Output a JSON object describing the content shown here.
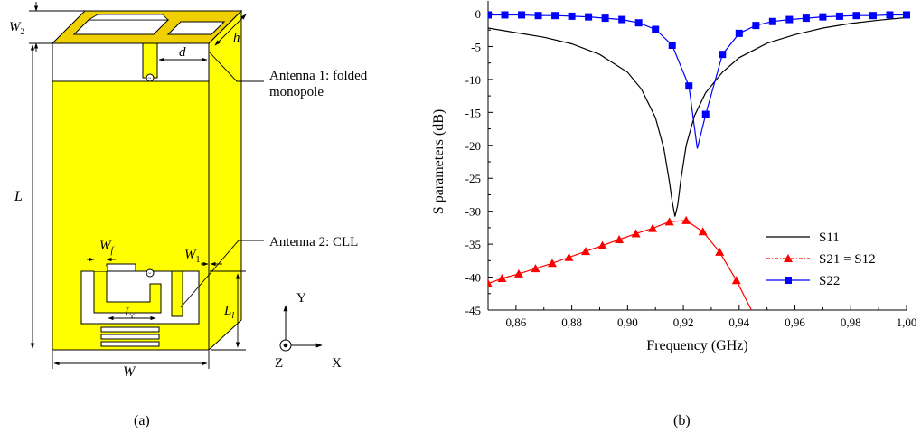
{
  "panel_a": {
    "caption": "(a)",
    "labels": {
      "W2_sym": "W",
      "W2_sub": "2",
      "h": "h",
      "d": "d",
      "L": "L",
      "Wf_sym": "W",
      "Wf_sub": "f",
      "W1_sym": "W",
      "W1_sub": "1",
      "Lc_sym": "L",
      "Lc_sub": "c",
      "L1_sym": "L",
      "L1_sub": "l",
      "W": "W"
    },
    "annotations": {
      "antenna1_line1": "Antenna 1: folded",
      "antenna1_line2": "monopole",
      "antenna2": "Antenna 2: CLL"
    },
    "axes": {
      "y": "Y",
      "x": "X",
      "z": "Z"
    },
    "colors": {
      "copper": "#ffff00",
      "copper_top": "#f0d000",
      "outline": "#000000"
    }
  },
  "panel_b": {
    "caption": "(b)"
  },
  "chart_data": {
    "type": "line",
    "xlabel": "Frequency (GHz)",
    "ylabel": "S parameters (dB)",
    "xlim": [
      0.85,
      1.0
    ],
    "ylim": [
      -45,
      0
    ],
    "xticks": [
      "0,86",
      "0,88",
      "0,90",
      "0,92",
      "0,94",
      "0,96",
      "0,98",
      "1,00"
    ],
    "xtick_values": [
      0.86,
      0.88,
      0.9,
      0.92,
      0.94,
      0.96,
      0.98,
      1.0
    ],
    "yticks": [
      "0",
      "-5",
      "-10",
      "-15",
      "-20",
      "-25",
      "-30",
      "-35",
      "-40",
      "-45"
    ],
    "ytick_values": [
      0,
      -5,
      -10,
      -15,
      -20,
      -25,
      -30,
      -35,
      -40,
      -45
    ],
    "grid": false,
    "legend_position": "bottom-right",
    "series": [
      {
        "name": "S11",
        "color": "#000000",
        "marker": "none",
        "x": [
          0.85,
          0.86,
          0.87,
          0.88,
          0.89,
          0.9,
          0.905,
          0.91,
          0.913,
          0.915,
          0.916,
          0.917,
          0.918,
          0.919,
          0.921,
          0.924,
          0.928,
          0.934,
          0.94,
          0.95,
          0.96,
          0.97,
          0.98,
          0.99,
          1.0
        ],
        "y": [
          -2.2,
          -2.9,
          -3.6,
          -4.6,
          -6.2,
          -8.9,
          -11.5,
          -15.8,
          -20.5,
          -25.5,
          -28.5,
          -30.8,
          -29.0,
          -25.5,
          -20.0,
          -15.5,
          -12.0,
          -8.9,
          -6.7,
          -4.5,
          -3.2,
          -2.2,
          -1.5,
          -1.0,
          -0.6
        ]
      },
      {
        "name": "S21 = S12",
        "color": "#ff0000",
        "marker": "triangle",
        "x": [
          0.85,
          0.855,
          0.861,
          0.867,
          0.873,
          0.879,
          0.885,
          0.891,
          0.897,
          0.903,
          0.909,
          0.915,
          0.921,
          0.927,
          0.933,
          0.939,
          0.945
        ],
        "y": [
          -41.0,
          -40.2,
          -39.5,
          -38.7,
          -37.9,
          -37.0,
          -36.1,
          -35.2,
          -34.3,
          -33.4,
          -32.6,
          -31.6,
          -31.4,
          -33.1,
          -36.2,
          -40.5,
          -45.5
        ]
      },
      {
        "name": "S22",
        "color": "#0000ff",
        "marker": "square",
        "x": [
          0.85,
          0.856,
          0.862,
          0.868,
          0.874,
          0.88,
          0.886,
          0.892,
          0.898,
          0.904,
          0.91,
          0.916,
          0.922,
          0.925,
          0.928,
          0.934,
          0.94,
          0.946,
          0.952,
          0.958,
          0.964,
          0.97,
          0.976,
          0.982,
          0.988,
          0.994,
          1.0
        ],
        "y": [
          -0.2,
          -0.2,
          -0.2,
          -0.3,
          -0.3,
          -0.4,
          -0.5,
          -0.7,
          -0.9,
          -1.4,
          -2.4,
          -4.8,
          -11.0,
          -20.5,
          -15.3,
          -6.2,
          -3.0,
          -1.8,
          -1.2,
          -0.9,
          -0.7,
          -0.5,
          -0.4,
          -0.3,
          -0.3,
          -0.2,
          -0.2
        ],
        "marker_x": [
          0.85,
          0.856,
          0.862,
          0.868,
          0.874,
          0.88,
          0.886,
          0.892,
          0.898,
          0.904,
          0.91,
          0.916,
          0.922,
          0.928,
          0.934,
          0.94,
          0.946,
          0.952,
          0.958,
          0.964,
          0.97,
          0.976,
          0.982,
          0.988,
          0.994,
          1.0
        ]
      }
    ]
  }
}
